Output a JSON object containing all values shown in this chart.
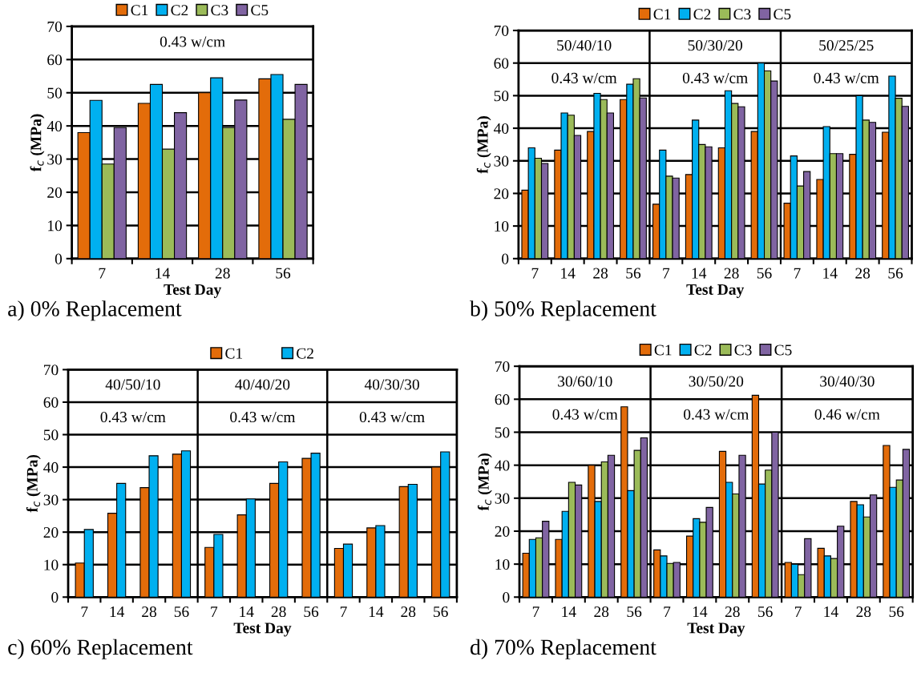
{
  "chart_data": [
    {
      "type": "bar",
      "title": "a) 0% Replacement",
      "xlabel": "Test Day",
      "ylabel": "f$_{c}$ (MPa)",
      "categories": [
        "7",
        "14",
        "28",
        "56"
      ],
      "series": [
        {
          "name": "C1",
          "color": "#e36c0a",
          "values": [
            38,
            46.8,
            50,
            54.2
          ]
        },
        {
          "name": "C2",
          "color": "#00b0f0",
          "values": [
            47.7,
            52.5,
            54.5,
            55.5
          ]
        },
        {
          "name": "C3",
          "color": "#9bbb59",
          "values": [
            28.5,
            33,
            39.5,
            42
          ]
        },
        {
          "name": "C5",
          "color": "#8064a2",
          "values": [
            39.5,
            44,
            47.8,
            52.5
          ]
        }
      ],
      "annotations": [
        "0.43 w/cm"
      ],
      "ylim": [
        0,
        70
      ],
      "yticks": [
        0,
        10,
        20,
        30,
        40,
        50,
        60,
        70
      ],
      "grid": "y",
      "legend": "top"
    },
    {
      "type": "bar",
      "title": "b) 50% Replacement",
      "xlabel": "Test Day",
      "ylabel": "f$_{c}$ (MPa)",
      "categories": [
        "7",
        "14",
        "28",
        "56",
        "7",
        "14",
        "28",
        "56",
        "7",
        "14",
        "28",
        "56"
      ],
      "series": [
        {
          "name": "C1",
          "color": "#e36c0a",
          "values": [
            21,
            33.3,
            39,
            48.8,
            16.7,
            25.8,
            34,
            39,
            17,
            24.3,
            32,
            38.8
          ]
        },
        {
          "name": "C2",
          "color": "#00b0f0",
          "values": [
            34,
            44.7,
            50.7,
            53.5,
            33.3,
            42.5,
            51.5,
            60,
            31.5,
            40.5,
            50,
            56
          ]
        },
        {
          "name": "C3",
          "color": "#9bbb59",
          "values": [
            30.8,
            44,
            48.8,
            55.2,
            25.3,
            35,
            47.6,
            57.6,
            22.3,
            32.2,
            42.5,
            49.2
          ]
        },
        {
          "name": "C5",
          "color": "#8064a2",
          "values": [
            29.2,
            37.8,
            44.7,
            49.3,
            24.7,
            34.3,
            46.6,
            54.5,
            26.7,
            32.2,
            41.8,
            46.7
          ]
        }
      ],
      "annotations": [
        "50/40/10",
        "50/30/20",
        "50/25/25",
        "0.43 w/cm",
        "0.43 w/cm",
        "0.43 w/cm"
      ],
      "ylim": [
        0,
        70
      ],
      "yticks": [
        0,
        10,
        20,
        30,
        40,
        50,
        60,
        70
      ],
      "grid": "y",
      "legend": "top"
    },
    {
      "type": "bar",
      "title": "c) 60% Replacement",
      "xlabel": "Test Day",
      "ylabel": "f$_{c}$ (MPa)",
      "categories": [
        "7",
        "14",
        "28",
        "56",
        "7",
        "14",
        "28",
        "56",
        "7",
        "14",
        "28",
        "56"
      ],
      "series": [
        {
          "name": "C1",
          "color": "#e36c0a",
          "values": [
            10.5,
            25.8,
            33.7,
            44,
            15.3,
            25.3,
            35,
            42.7,
            15,
            21.3,
            34,
            40
          ]
        },
        {
          "name": "C2",
          "color": "#00b0f0",
          "values": [
            20.8,
            35,
            43.5,
            45,
            19.3,
            30.2,
            41.6,
            44.3,
            16.3,
            22,
            34.7,
            44.7
          ]
        }
      ],
      "annotations": [
        "40/50/10",
        "40/40/20",
        "40/30/30",
        "0.43 w/cm",
        "0.43 w/cm",
        "0.43 w/cm"
      ],
      "ylim": [
        0,
        70
      ],
      "yticks": [
        0,
        10,
        20,
        30,
        40,
        50,
        60,
        70
      ],
      "grid": "y",
      "legend": "top"
    },
    {
      "type": "bar",
      "title": "d) 70% Replacement",
      "xlabel": "Test Day",
      "ylabel": "f$_{c}$ (MPa)",
      "categories": [
        "7",
        "14",
        "28",
        "56",
        "7",
        "14",
        "28",
        "56",
        "7",
        "14",
        "28",
        "56"
      ],
      "series": [
        {
          "name": "C1",
          "color": "#e36c0a",
          "values": [
            13.3,
            17.5,
            40,
            57.7,
            14.3,
            18.5,
            44.2,
            61.2,
            10.5,
            14.8,
            29,
            46
          ]
        },
        {
          "name": "C2",
          "color": "#00b0f0",
          "values": [
            17.5,
            26,
            29,
            32.3,
            12.5,
            23.8,
            34.8,
            34.3,
            10,
            12.5,
            28,
            33.3
          ]
        },
        {
          "name": "C3",
          "color": "#9bbb59",
          "values": [
            18,
            34.8,
            41,
            44.5,
            10.2,
            22.7,
            31.3,
            38.5,
            6.8,
            11.7,
            24.3,
            35.5
          ]
        },
        {
          "name": "C5",
          "color": "#8064a2",
          "values": [
            23,
            34,
            43,
            48.3,
            10.5,
            27.2,
            43,
            50,
            17.7,
            21.5,
            31,
            44.8
          ]
        }
      ],
      "annotations": [
        "30/60/10",
        "30/50/20",
        "30/40/30",
        "0.43 w/cm",
        "0.43 w/cm",
        "0.46 w/cm"
      ],
      "ylim": [
        0,
        70
      ],
      "yticks": [
        0,
        10,
        20,
        30,
        40,
        50,
        60,
        70
      ],
      "grid": "y",
      "legend": "top"
    }
  ]
}
